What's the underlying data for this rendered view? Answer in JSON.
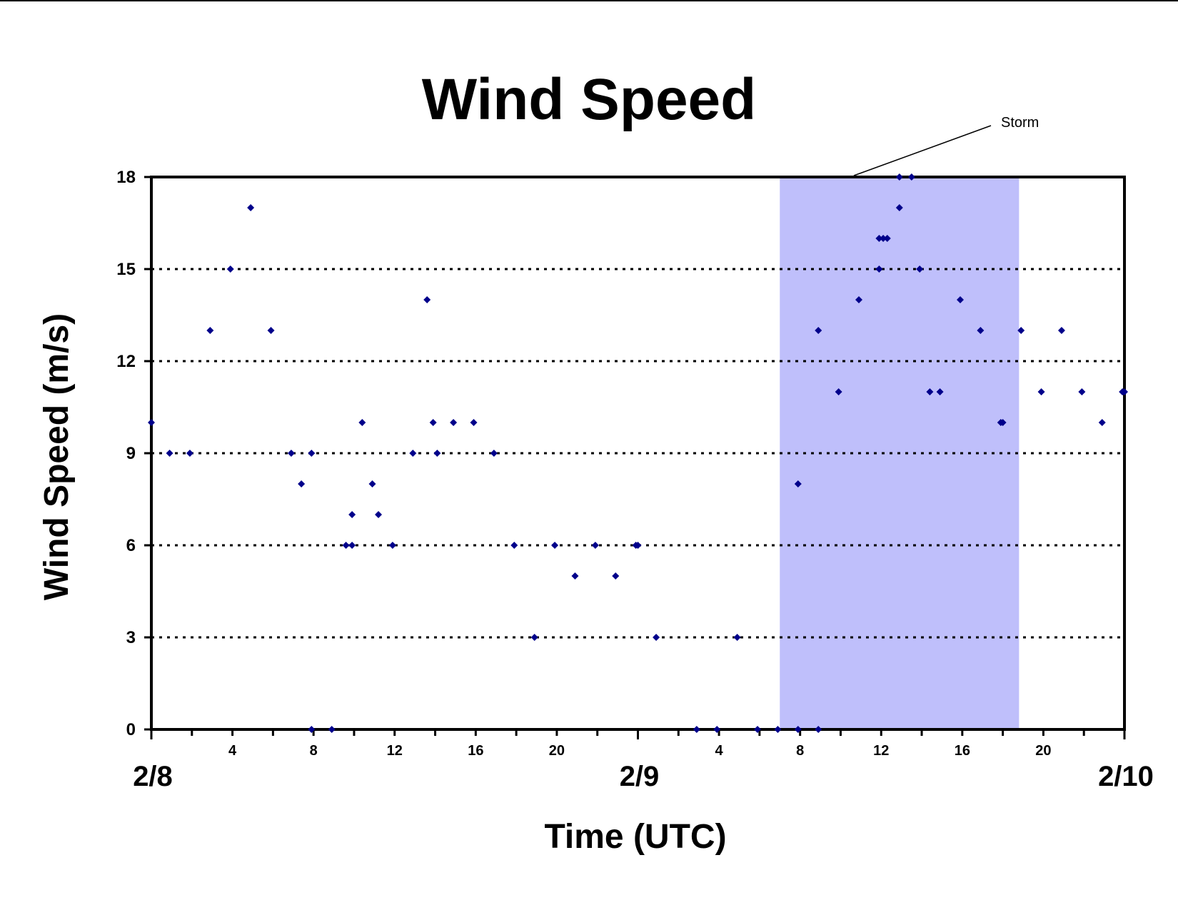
{
  "chart_data": {
    "type": "scatter",
    "title": "Wind Speed",
    "xlabel": "Time (UTC)",
    "ylabel": "Wind Speed (m/s)",
    "x_unit": "hours",
    "xlim": [
      0,
      48
    ],
    "ylim": [
      0,
      18
    ],
    "y_ticks": [
      0,
      3,
      6,
      9,
      12,
      15,
      18
    ],
    "hour_ticks": [
      {
        "x": 4,
        "label": "4"
      },
      {
        "x": 8,
        "label": "8"
      },
      {
        "x": 12,
        "label": "12"
      },
      {
        "x": 16,
        "label": "16"
      },
      {
        "x": 20,
        "label": "20"
      },
      {
        "x": 28,
        "label": "4"
      },
      {
        "x": 32,
        "label": "8"
      },
      {
        "x": 36,
        "label": "12"
      },
      {
        "x": 40,
        "label": "16"
      },
      {
        "x": 44,
        "label": "20"
      }
    ],
    "date_ticks": [
      {
        "x": 0,
        "label": "2/8"
      },
      {
        "x": 24,
        "label": "2/9"
      },
      {
        "x": 48,
        "label": "2/10"
      }
    ],
    "grid": "horizontal-dotted",
    "shaded_region": {
      "x_start": 31,
      "x_end": 42.8,
      "label": "Storm",
      "color": "#bfbffb"
    },
    "marker_color": "#00008b",
    "series": [
      {
        "points": [
          [
            0,
            10
          ],
          [
            0.9,
            9
          ],
          [
            1.9,
            9
          ],
          [
            2.9,
            13
          ],
          [
            3.9,
            15
          ],
          [
            4.9,
            17
          ],
          [
            5.9,
            13
          ],
          [
            6.9,
            9
          ],
          [
            7.4,
            8
          ],
          [
            7.9,
            9
          ],
          [
            7.9,
            0
          ],
          [
            8.9,
            0
          ],
          [
            9.6,
            6
          ],
          [
            9.9,
            6
          ],
          [
            9.9,
            7
          ],
          [
            10.4,
            10
          ],
          [
            10.9,
            8
          ],
          [
            11.2,
            7
          ],
          [
            11.9,
            6
          ],
          [
            12.9,
            9
          ],
          [
            13.6,
            14
          ],
          [
            13.9,
            10
          ],
          [
            14.1,
            9
          ],
          [
            14.9,
            10
          ],
          [
            15.9,
            10
          ],
          [
            16.9,
            9
          ],
          [
            17.9,
            6
          ],
          [
            18.9,
            3
          ],
          [
            19.9,
            6
          ],
          [
            20.9,
            5
          ],
          [
            21.9,
            6
          ],
          [
            22.9,
            5
          ],
          [
            23.9,
            6
          ],
          [
            24.0,
            6
          ],
          [
            24.9,
            3
          ],
          [
            26.9,
            0
          ],
          [
            27.9,
            0
          ],
          [
            28.9,
            3
          ],
          [
            29.9,
            0
          ],
          [
            30.9,
            0
          ],
          [
            31.9,
            0
          ],
          [
            32.9,
            0
          ],
          [
            31.9,
            8
          ],
          [
            32.9,
            13
          ],
          [
            33.9,
            11
          ],
          [
            34.9,
            14
          ],
          [
            35.9,
            15
          ],
          [
            35.9,
            16
          ],
          [
            36.1,
            16
          ],
          [
            36.3,
            16
          ],
          [
            36.9,
            17
          ],
          [
            36.9,
            18
          ],
          [
            37.5,
            18
          ],
          [
            37.9,
            15
          ],
          [
            38.4,
            11
          ],
          [
            38.9,
            11
          ],
          [
            39.9,
            14
          ],
          [
            40.9,
            13
          ],
          [
            41.9,
            10
          ],
          [
            42.0,
            10
          ],
          [
            42.9,
            13
          ],
          [
            43.9,
            11
          ],
          [
            44.9,
            13
          ],
          [
            45.9,
            11
          ],
          [
            46.9,
            10
          ],
          [
            47.9,
            11
          ],
          [
            48,
            11
          ]
        ]
      }
    ]
  }
}
